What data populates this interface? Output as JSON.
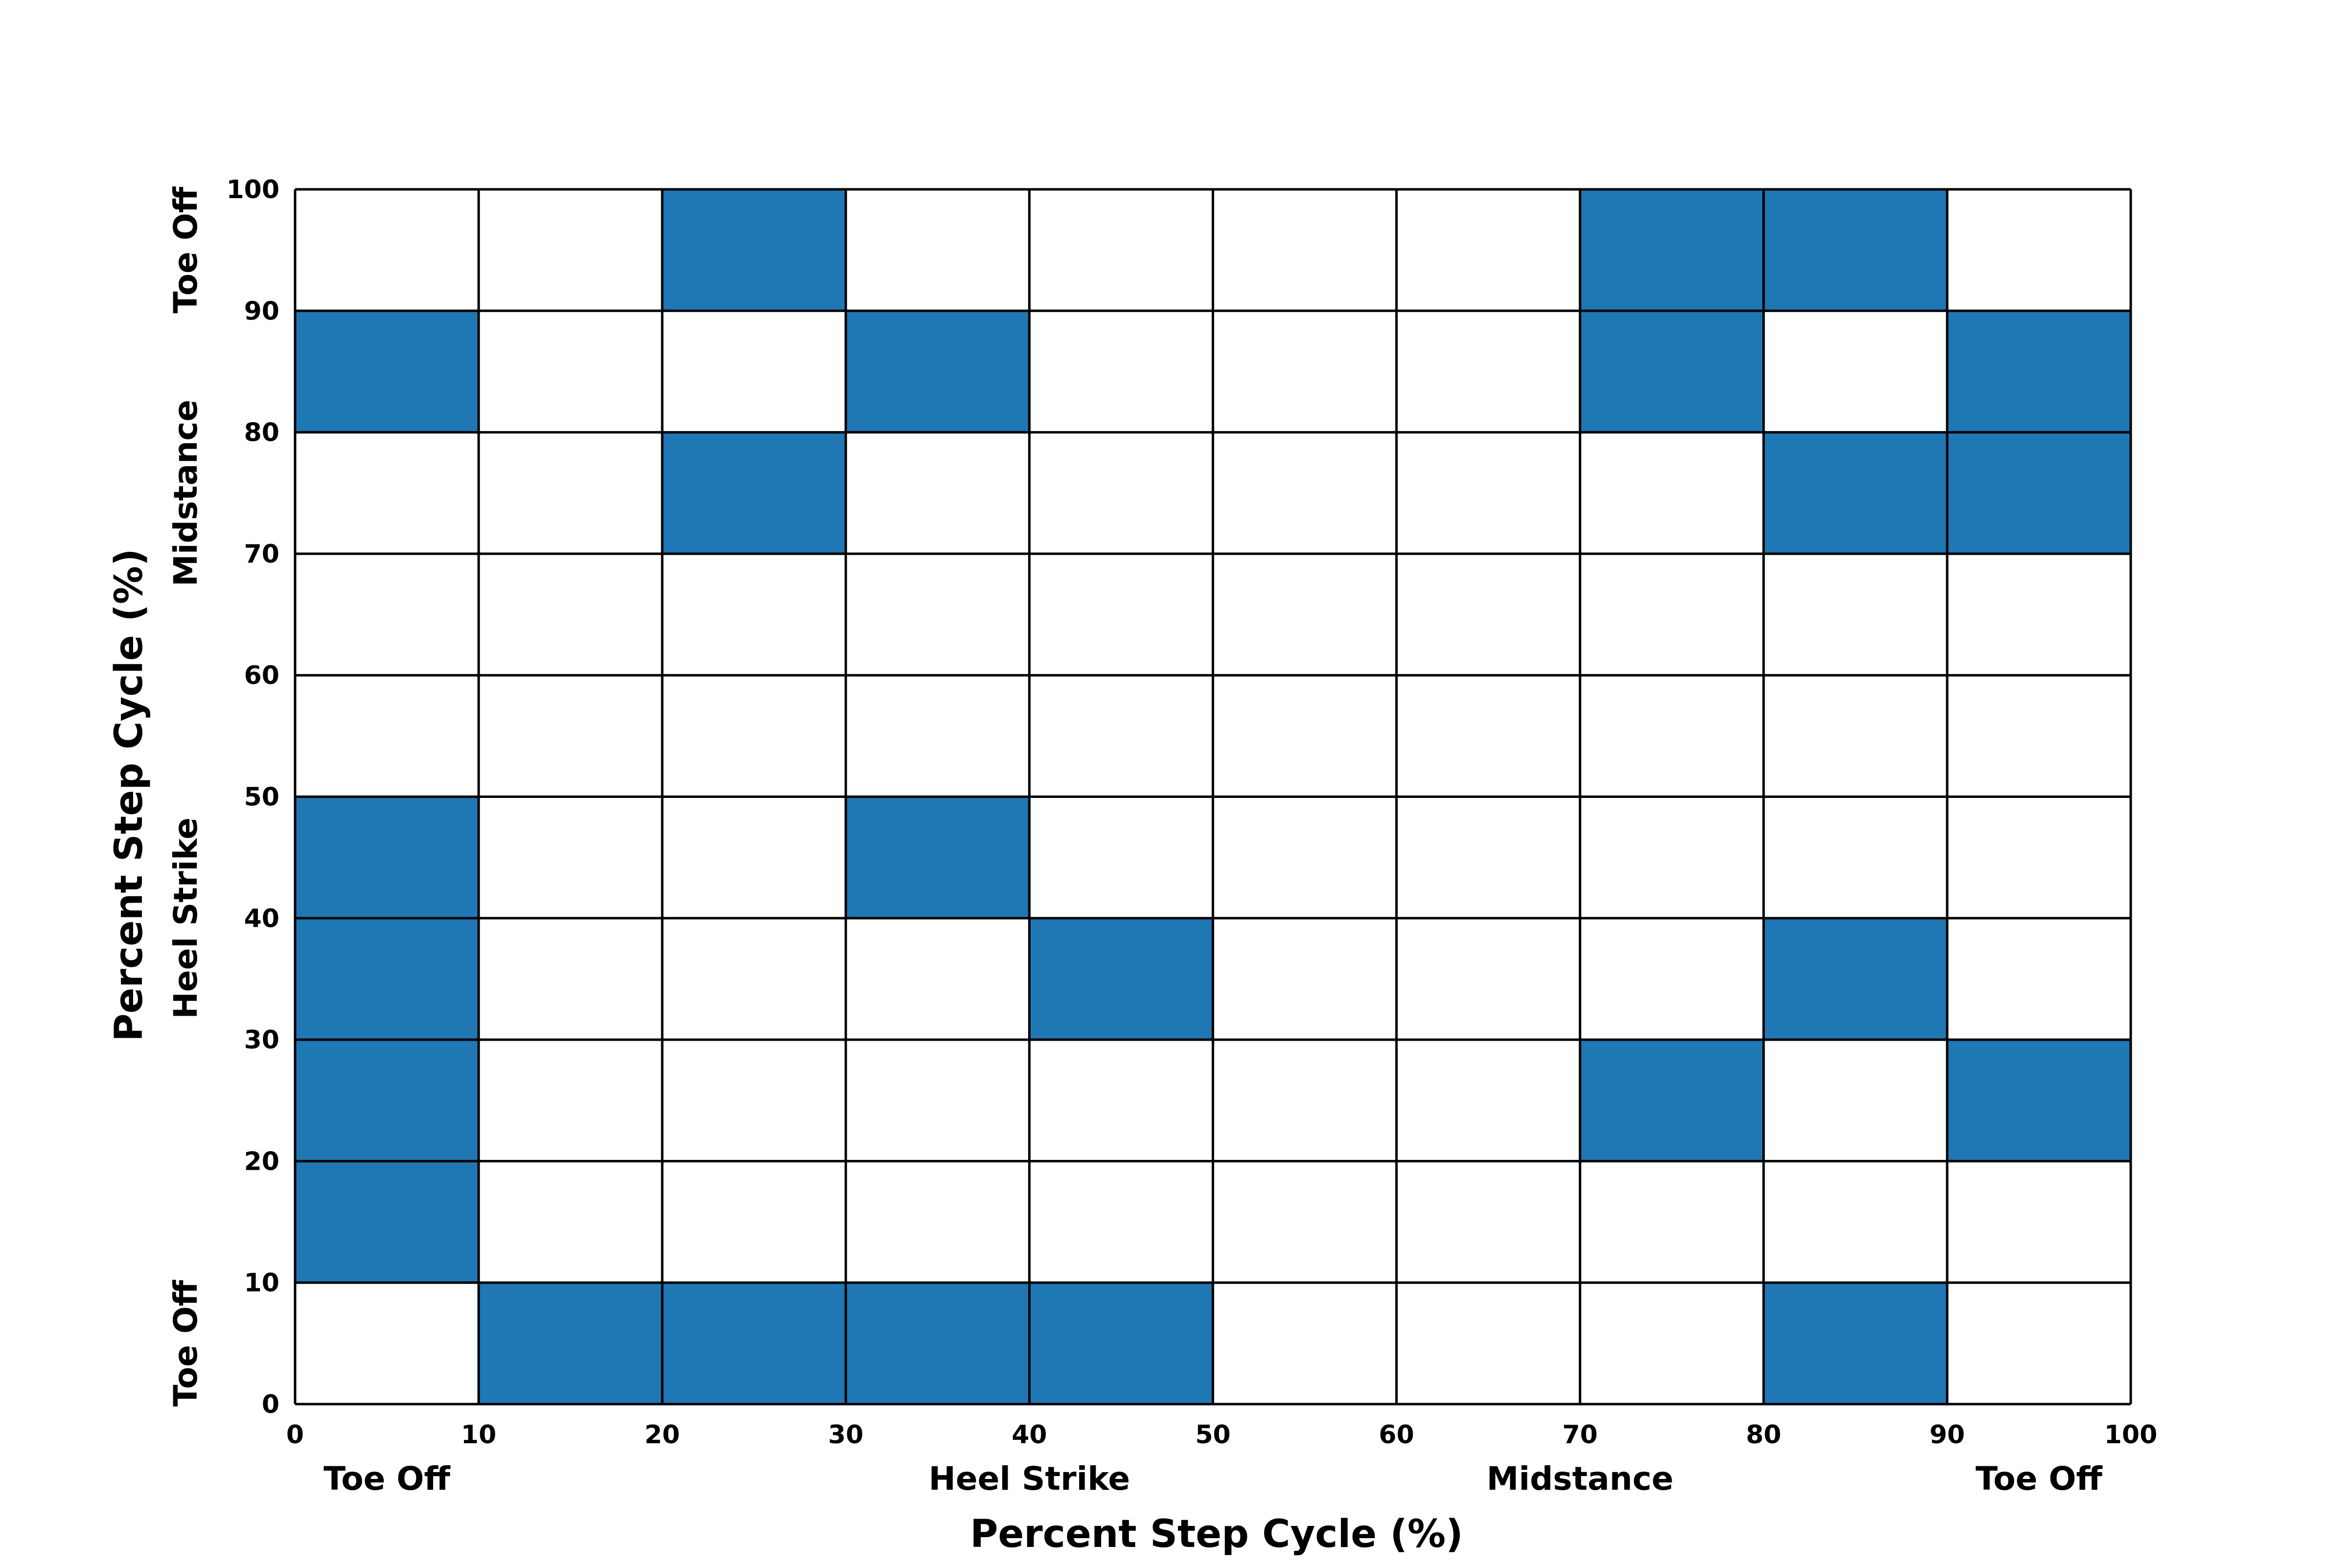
{
  "chart_data": {
    "type": "heatmap",
    "title": "",
    "xlabel": "Percent Step Cycle (%)",
    "ylabel": "Percent Step Cycle (%)",
    "xlim": [
      0,
      100
    ],
    "ylim": [
      0,
      100
    ],
    "x_ticks": [
      "0",
      "10",
      "20",
      "30",
      "40",
      "50",
      "60",
      "70",
      "80",
      "90",
      "100"
    ],
    "y_ticks": [
      "0",
      "10",
      "20",
      "30",
      "40",
      "50",
      "60",
      "70",
      "80",
      "90",
      "100"
    ],
    "x_phase_labels": [
      {
        "text": "Toe Off",
        "at": 5
      },
      {
        "text": "Heel Strike",
        "at": 40
      },
      {
        "text": "Midstance",
        "at": 70
      },
      {
        "text": "Toe Off",
        "at": 95
      }
    ],
    "y_phase_labels": [
      {
        "text": "Toe Off",
        "at": 5
      },
      {
        "text": "Heel Strike",
        "at": 40
      },
      {
        "text": "Midstance",
        "at": 75
      },
      {
        "text": "Toe Off",
        "at": 95
      }
    ],
    "grid": true,
    "cell_size": 10,
    "filled_color": "#1f77b4",
    "empty_color": "#ffffff",
    "grid_color": "#000000",
    "filled_cells": [
      {
        "x": 20,
        "y": 90
      },
      {
        "x": 70,
        "y": 90
      },
      {
        "x": 80,
        "y": 90
      },
      {
        "x": 0,
        "y": 80
      },
      {
        "x": 30,
        "y": 80
      },
      {
        "x": 70,
        "y": 80
      },
      {
        "x": 90,
        "y": 80
      },
      {
        "x": 20,
        "y": 70
      },
      {
        "x": 80,
        "y": 70
      },
      {
        "x": 90,
        "y": 70
      },
      {
        "x": 0,
        "y": 40
      },
      {
        "x": 30,
        "y": 40
      },
      {
        "x": 0,
        "y": 30
      },
      {
        "x": 40,
        "y": 30
      },
      {
        "x": 80,
        "y": 30
      },
      {
        "x": 0,
        "y": 20
      },
      {
        "x": 70,
        "y": 20
      },
      {
        "x": 90,
        "y": 20
      },
      {
        "x": 0,
        "y": 10
      },
      {
        "x": 10,
        "y": 0
      },
      {
        "x": 20,
        "y": 0
      },
      {
        "x": 30,
        "y": 0
      },
      {
        "x": 40,
        "y": 0
      },
      {
        "x": 80,
        "y": 0
      }
    ]
  }
}
